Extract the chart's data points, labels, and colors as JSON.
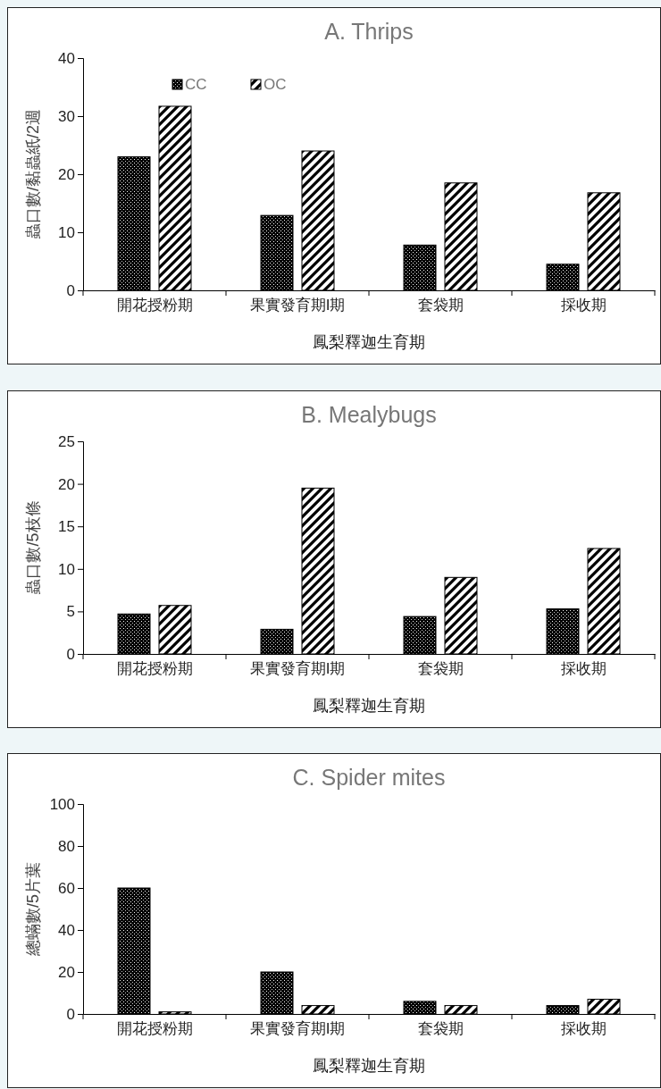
{
  "chart_data": [
    {
      "type": "bar",
      "title": "A. Thrips",
      "xlabel": "鳳梨釋迦生育期",
      "ylabel": "蟲口數/黏蟲紙/2週",
      "categories": [
        "開花授粉期",
        "果實發育期I期",
        "套袋期",
        "採收期"
      ],
      "ylim": [
        0,
        40
      ],
      "yticks": [
        0,
        10,
        20,
        30,
        40
      ],
      "legend": "top left",
      "series": [
        {
          "name": "CC",
          "color": "#000000",
          "values": [
            23,
            12.9,
            7.8,
            4.5
          ]
        },
        {
          "name": "OC",
          "color": "#000000",
          "values": [
            31.7,
            24,
            18.5,
            16.8
          ]
        }
      ]
    },
    {
      "type": "bar",
      "title": "B. Mealybugs",
      "xlabel": "鳳梨釋迦生育期",
      "ylabel": "蟲口數/5枝條",
      "categories": [
        "開花授粉期",
        "果實發育期I期",
        "套袋期",
        "採收期"
      ],
      "ylim": [
        0,
        25
      ],
      "yticks": [
        0,
        5,
        10,
        15,
        20,
        25
      ],
      "series": [
        {
          "color": "#000000",
          "values": [
            4.7,
            2.9,
            4.4,
            5.3
          ]
        },
        {
          "color": "#000000",
          "values": [
            5.7,
            19.5,
            9,
            12.4
          ]
        }
      ]
    },
    {
      "type": "bar",
      "title": "C. Spider mites",
      "xlabel": "鳳梨釋迦生育期",
      "ylabel": "總蟎數/5片葉",
      "categories": [
        "開花授粉期",
        "果實發育期I期",
        "套袋期",
        "採收期"
      ],
      "ylim": [
        0,
        100
      ],
      "yticks": [
        0,
        20,
        40,
        60,
        80,
        100
      ],
      "series": [
        {
          "color": "#000000",
          "values": [
            60,
            20,
            6,
            4
          ]
        },
        {
          "color": "#000000",
          "values": [
            1,
            4,
            4,
            7
          ]
        }
      ]
    }
  ]
}
